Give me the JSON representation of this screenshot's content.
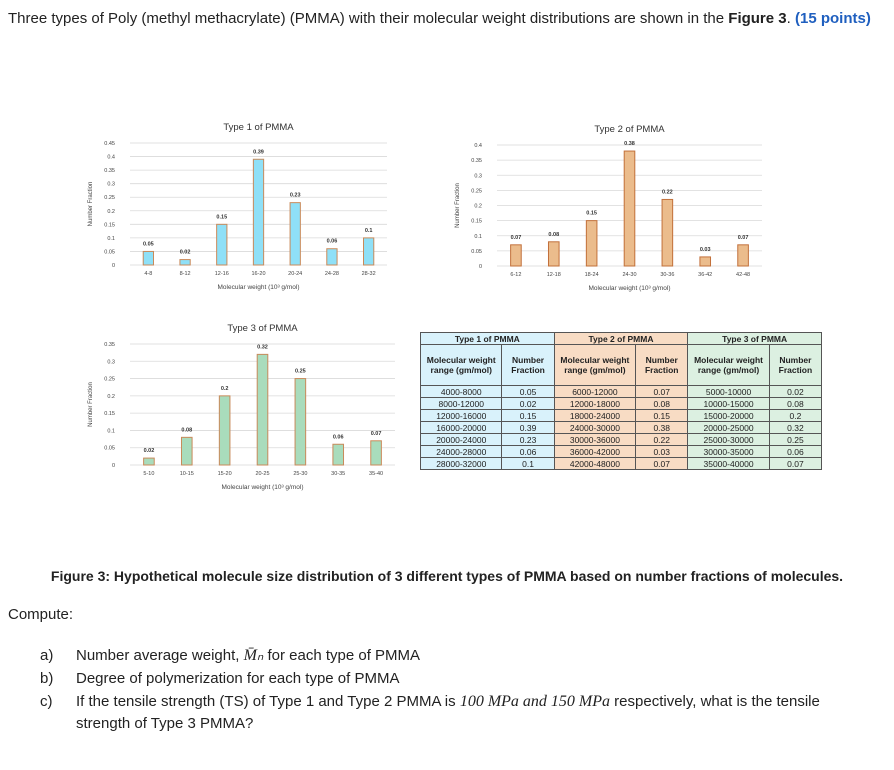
{
  "intro": {
    "text": "Three types of Poly (methyl methacrylate) (PMMA) with their molecular weight distributions are shown in the ",
    "figure_ref": "Figure 3",
    "period": ". ",
    "points": "(15 points)"
  },
  "chart_data": [
    {
      "type": "bar",
      "title": "Type 1 of PMMA",
      "xlabel": "Molecular weight (10³ g/mol)",
      "ylabel": "Number Fraction",
      "categories": [
        "4-8",
        "8-12",
        "12-16",
        "16-20",
        "20-24",
        "24-28",
        "28-32"
      ],
      "values": [
        0.05,
        0.02,
        0.15,
        0.39,
        0.23,
        0.06,
        0.1
      ],
      "ylim": [
        0,
        0.45
      ],
      "ytick_step": 0.05,
      "grid": true,
      "bar_color": "#8fe0f7",
      "edge_color": "#c98a5a"
    },
    {
      "type": "bar",
      "title": "Type 2 of PMMA",
      "xlabel": "Molecular weight (10³ g/mol)",
      "ylabel": "Number Fraction",
      "categories": [
        "6-12",
        "12-18",
        "18-24",
        "24-30",
        "30-36",
        "36-42",
        "42-48"
      ],
      "values": [
        0.07,
        0.08,
        0.15,
        0.38,
        0.22,
        0.03,
        0.07
      ],
      "ylim": [
        0,
        0.4
      ],
      "ytick_step": 0.05,
      "grid": true,
      "bar_color": "#ebbc8c",
      "edge_color": "#c2703a"
    },
    {
      "type": "bar",
      "title": "Type 3 of PMMA",
      "xlabel": "Molecular weight (10³ g/mol)",
      "ylabel": "Number Fraction",
      "categories": [
        "5-10",
        "10-15",
        "15-20",
        "20-25",
        "25-30",
        "30-35",
        "35-40"
      ],
      "values": [
        0.02,
        0.08,
        0.2,
        0.32,
        0.25,
        0.06,
        0.07
      ],
      "ylim": [
        0,
        0.35
      ],
      "ytick_step": 0.05,
      "grid": true,
      "bar_color": "#a9dcbc",
      "edge_color": "#c98a5a"
    }
  ],
  "table": {
    "groups": [
      "Type 1 of PMMA",
      "Type 2 of PMMA",
      "Type 3 of PMMA"
    ],
    "col_range": "Molecular weight range (gm/mol)",
    "col_fraction": "Number Fraction",
    "rows": [
      [
        "4000-8000",
        "0.05",
        "6000-12000",
        "0.07",
        "5000-10000",
        "0.02"
      ],
      [
        "8000-12000",
        "0.02",
        "12000-18000",
        "0.08",
        "10000-15000",
        "0.08"
      ],
      [
        "12000-16000",
        "0.15",
        "18000-24000",
        "0.15",
        "15000-20000",
        "0.2"
      ],
      [
        "16000-20000",
        "0.39",
        "24000-30000",
        "0.38",
        "20000-25000",
        "0.32"
      ],
      [
        "20000-24000",
        "0.23",
        "30000-36000",
        "0.22",
        "25000-30000",
        "0.25"
      ],
      [
        "24000-28000",
        "0.06",
        "36000-42000",
        "0.03",
        "30000-35000",
        "0.06"
      ],
      [
        "28000-32000",
        "0.1",
        "42000-48000",
        "0.07",
        "35000-40000",
        "0.07"
      ]
    ]
  },
  "caption": "Figure 3: Hypothetical molecule size distribution of 3 different types of PMMA based on number fractions of molecules.",
  "compute": "Compute:",
  "questions": [
    {
      "label": "a)",
      "text": "Number average weight, ",
      "math": "M̄ₙ",
      "rest": " for each type of PMMA"
    },
    {
      "label": "b)",
      "text": "Degree of polymerization for each type of PMMA"
    },
    {
      "label": "c)",
      "text": "If the tensile strength (TS) of Type 1 and Type 2 PMMA is ",
      "math1": "100 MPa and 150 MPa",
      "rest": " respectively, what is the tensile",
      "line2": "strength of Type 3 PMMA?"
    }
  ]
}
